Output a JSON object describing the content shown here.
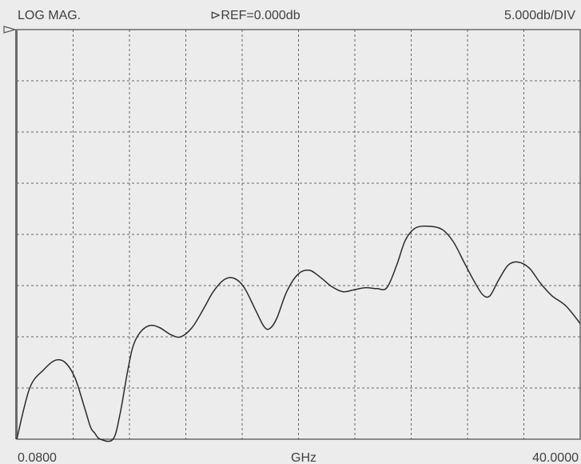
{
  "header": {
    "format": "LOG MAG.",
    "reference": "⊳REF=0.000db",
    "scale": "5.000db/DIV"
  },
  "footer": {
    "start": "0.0800",
    "unit": "GHz",
    "stop": "40.0000"
  },
  "chart_data": {
    "type": "line",
    "title": "",
    "xlabel": "GHz",
    "ylabel": "",
    "x_unit": "GHz",
    "y_unit": "dB",
    "xlim": [
      0.08,
      40.0
    ],
    "ylim": [
      -40,
      0
    ],
    "reference_level_db": 0.0,
    "scale_db_per_div": 5.0,
    "grid": true,
    "grid_divisions": {
      "x": 10,
      "y": 8
    },
    "series": [
      {
        "name": "",
        "points": [
          [
            0.08,
            -40.0
          ],
          [
            1.0,
            -35.0
          ],
          [
            2.0,
            -33.2
          ],
          [
            2.8,
            -32.3
          ],
          [
            3.5,
            -32.5
          ],
          [
            4.2,
            -34.0
          ],
          [
            4.9,
            -37.0
          ],
          [
            5.3,
            -38.8
          ],
          [
            5.6,
            -39.4
          ],
          [
            6.0,
            -40.0
          ],
          [
            6.9,
            -40.0
          ],
          [
            7.4,
            -37.5
          ],
          [
            7.9,
            -33.6
          ],
          [
            8.3,
            -31.0
          ],
          [
            8.8,
            -29.6
          ],
          [
            9.5,
            -28.9
          ],
          [
            10.2,
            -29.1
          ],
          [
            11.0,
            -29.8
          ],
          [
            11.7,
            -30.0
          ],
          [
            12.5,
            -29.1
          ],
          [
            13.3,
            -27.3
          ],
          [
            14.0,
            -25.6
          ],
          [
            14.8,
            -24.4
          ],
          [
            15.5,
            -24.3
          ],
          [
            16.2,
            -25.2
          ],
          [
            17.0,
            -27.4
          ],
          [
            17.6,
            -29.0
          ],
          [
            18.0,
            -29.2
          ],
          [
            18.5,
            -28.2
          ],
          [
            19.2,
            -25.6
          ],
          [
            20.0,
            -23.9
          ],
          [
            20.8,
            -23.5
          ],
          [
            21.6,
            -24.2
          ],
          [
            22.4,
            -25.1
          ],
          [
            23.2,
            -25.6
          ],
          [
            24.0,
            -25.4
          ],
          [
            24.8,
            -25.2
          ],
          [
            25.6,
            -25.3
          ],
          [
            26.3,
            -25.2
          ],
          [
            27.0,
            -23.0
          ],
          [
            27.6,
            -20.6
          ],
          [
            28.3,
            -19.4
          ],
          [
            29.2,
            -19.2
          ],
          [
            30.2,
            -19.5
          ],
          [
            31.0,
            -20.7
          ],
          [
            31.8,
            -22.8
          ],
          [
            32.5,
            -24.6
          ],
          [
            33.1,
            -25.9
          ],
          [
            33.6,
            -26.0
          ],
          [
            34.2,
            -24.5
          ],
          [
            34.9,
            -23.0
          ],
          [
            35.6,
            -22.7
          ],
          [
            36.4,
            -23.3
          ],
          [
            37.2,
            -24.8
          ],
          [
            38.0,
            -26.0
          ],
          [
            39.0,
            -27.0
          ],
          [
            40.0,
            -28.7
          ]
        ]
      }
    ]
  }
}
